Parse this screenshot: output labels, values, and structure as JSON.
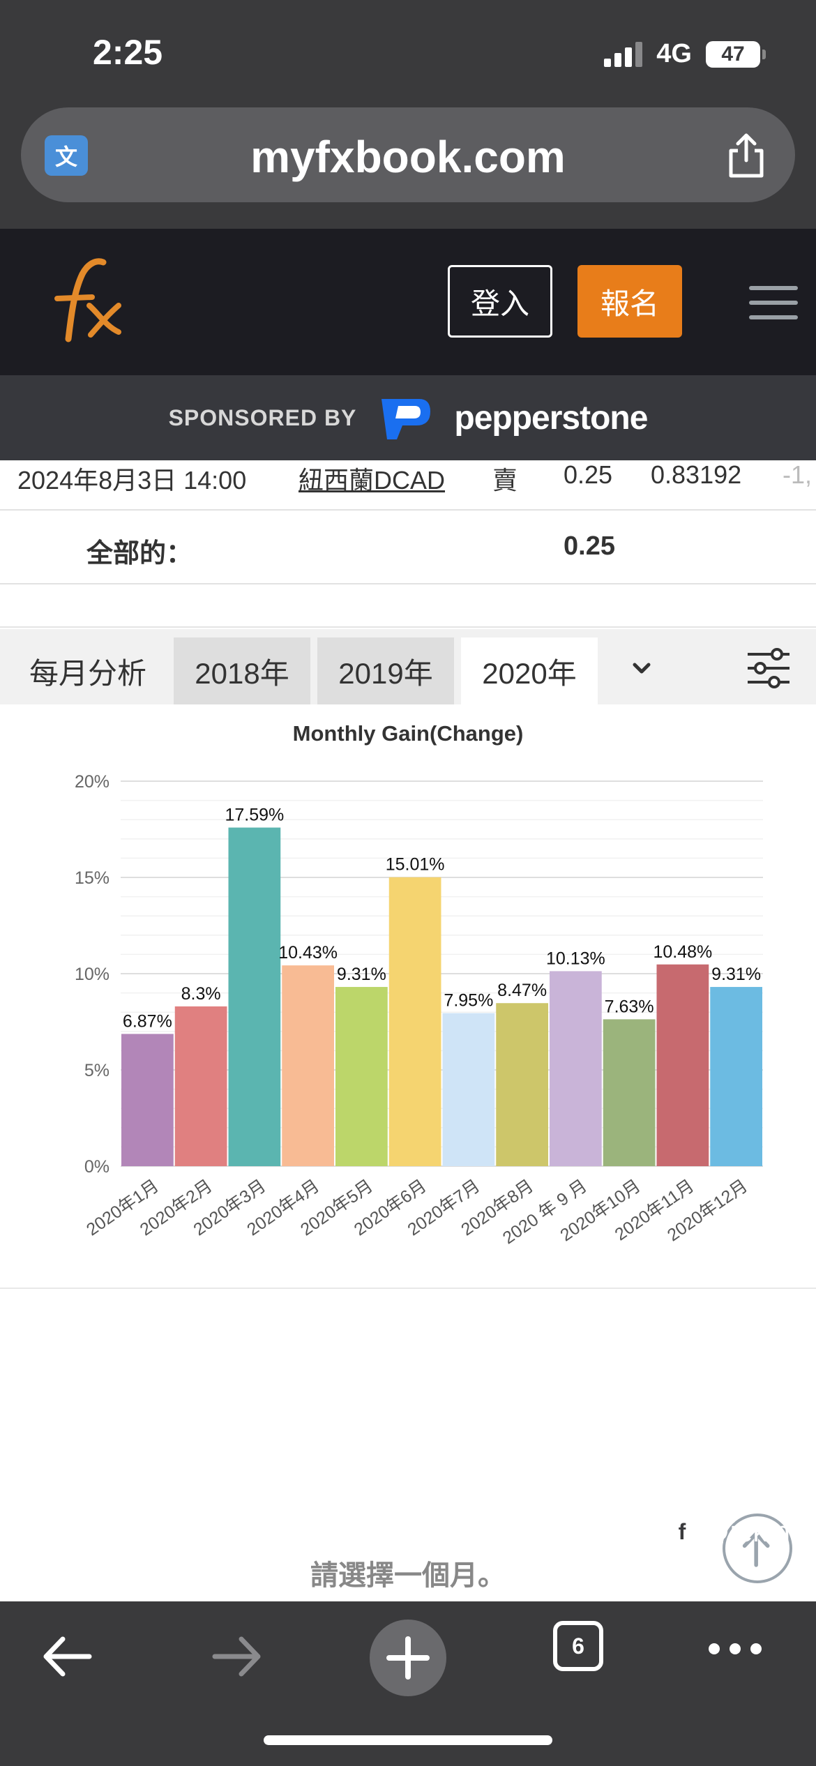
{
  "status_bar": {
    "time": "2:25",
    "network": "4G",
    "battery": "47"
  },
  "browser": {
    "url": "myfxbook.com",
    "tab_count": "6",
    "icons": [
      "translate-icon",
      "share-icon",
      "back-arrow-icon",
      "forward-arrow-icon",
      "plus-icon",
      "tabs-icon",
      "more-icon"
    ]
  },
  "header": {
    "logo": "fx",
    "login_label": "登入",
    "signup_label": "報名",
    "accent_color": "#e87d1a"
  },
  "sponsor": {
    "label": "SPONSORED BY",
    "name": "pepperstone"
  },
  "trade_row": {
    "date": "2024年8月3日 14:00",
    "symbol": "紐西蘭DCAD",
    "action": "賣",
    "lots": "0.25",
    "price": "0.83192",
    "extra": "-1,"
  },
  "total_row": {
    "label": "全部的：",
    "value": "0.25"
  },
  "tabs": {
    "title": "每月分析",
    "years": [
      "2018年",
      "2019年",
      "2020年"
    ],
    "active": "2020年"
  },
  "chart_data": {
    "type": "bar",
    "title": "Monthly Gain(Change)",
    "categories": [
      "2020年1月",
      "2020年2月",
      "2020年3月",
      "2020年4月",
      "2020年5月",
      "2020年6月",
      "2020年7月",
      "2020年8月",
      "2020 年 9 月",
      "2020年10月",
      "2020年11月",
      "2020年12月"
    ],
    "values": [
      6.87,
      8.3,
      17.59,
      10.43,
      9.31,
      15.01,
      7.95,
      8.47,
      10.13,
      7.63,
      10.48,
      9.31
    ],
    "data_labels": [
      "6.87%",
      "8.3%",
      "17.59%",
      "10.43%",
      "9.31%",
      "15.01%",
      "7.95%",
      "8.47%",
      "10.13%",
      "7.63%",
      "10.48%",
      "9.31%"
    ],
    "colors": [
      "#b286b8",
      "#e08080",
      "#5bb5b0",
      "#f8bb94",
      "#bcd66a",
      "#f5d470",
      "#cfe4f7",
      "#cdc66a",
      "#c9b4d8",
      "#9bb47c",
      "#c76a6f",
      "#6cbbe2"
    ],
    "y_ticks": [
      "0%",
      "5%",
      "10%",
      "15%",
      "20%"
    ],
    "ylim": [
      0,
      20
    ],
    "grid": true,
    "legend": "none"
  },
  "lower": {
    "prompt": "請選擇一個月。"
  },
  "watermark": {
    "icon": "facebook-icon",
    "text": "@ieking"
  }
}
